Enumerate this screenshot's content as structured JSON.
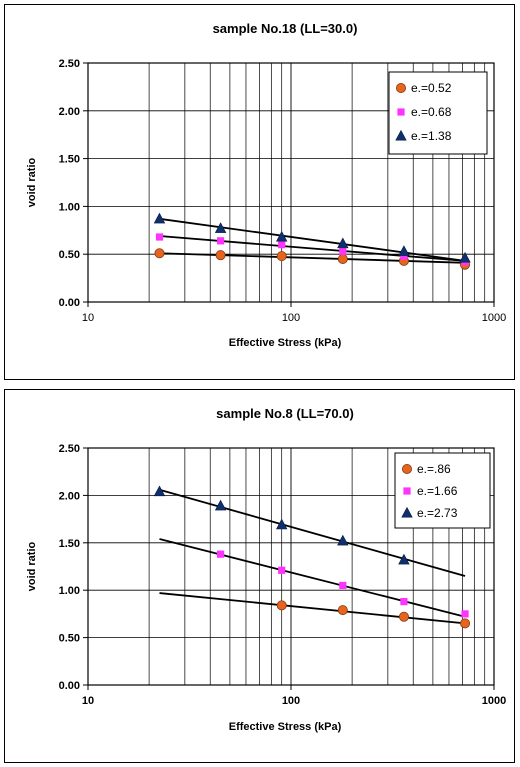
{
  "chart_data": [
    {
      "type": "scatter",
      "title": "sample No.18 (LL=30.0)",
      "xlabel": "Effective Stress (kPa)",
      "ylabel": "void ratio",
      "xscale": "log",
      "xlim": [
        10,
        1000
      ],
      "ylim": [
        0,
        2.5
      ],
      "x_ticks": [
        "10",
        "100",
        "1000"
      ],
      "y_ticks": [
        "0.00",
        "0.50",
        "1.00",
        "1.50",
        "2.00",
        "2.50"
      ],
      "grid": true,
      "legend_position": "top-right",
      "series": [
        {
          "name": "e.=0.52",
          "marker": "circle",
          "color": "#e8641e",
          "x": [
            22.5,
            45,
            90,
            180,
            360,
            720
          ],
          "y": [
            0.51,
            0.49,
            0.48,
            0.45,
            0.43,
            0.39
          ],
          "trend": [
            0.51,
            0.41
          ]
        },
        {
          "name": "e.=0.68",
          "marker": "square",
          "color": "#ff33ff",
          "x": [
            22.5,
            45,
            90,
            180,
            360,
            720
          ],
          "y": [
            0.68,
            0.64,
            0.6,
            0.53,
            0.48,
            0.42
          ],
          "trend": [
            0.69,
            0.43
          ]
        },
        {
          "name": "e.=1.38",
          "marker": "triangle",
          "color": "#0f2f6e",
          "x": [
            22.5,
            45,
            90,
            180,
            360,
            720
          ],
          "y": [
            0.87,
            0.77,
            0.68,
            0.61,
            0.53,
            0.46
          ],
          "trend": [
            0.87,
            0.43
          ]
        }
      ]
    },
    {
      "type": "scatter",
      "title": "sample No.8 (LL=70.0)",
      "xlabel": "Effective Stress (kPa)",
      "ylabel": "void ratio",
      "xscale": "log",
      "xlim": [
        10,
        1000
      ],
      "ylim": [
        0,
        2.5
      ],
      "x_ticks": [
        "10",
        "100",
        "1000"
      ],
      "y_ticks": [
        "0.00",
        "0.50",
        "1.00",
        "1.50",
        "2.00",
        "2.50"
      ],
      "grid": true,
      "legend_position": "top-right",
      "series": [
        {
          "name": "e.=.86",
          "marker": "circle",
          "color": "#e8641e",
          "x": [
            90,
            180,
            360,
            720
          ],
          "y": [
            0.84,
            0.79,
            0.72,
            0.65
          ],
          "trend": [
            0.97,
            0.65
          ]
        },
        {
          "name": "e.=1.66",
          "marker": "square",
          "color": "#ff33ff",
          "x": [
            45,
            90,
            180,
            360,
            720
          ],
          "y": [
            1.38,
            1.21,
            1.05,
            0.88,
            0.75
          ],
          "trend": [
            1.54,
            0.72
          ]
        },
        {
          "name": "e.=2.73",
          "marker": "triangle",
          "color": "#0f2f6e",
          "x": [
            22.5,
            45,
            90,
            180,
            360
          ],
          "y": [
            2.04,
            1.89,
            1.69,
            1.52,
            1.32
          ],
          "trend": [
            2.06,
            1.15
          ]
        }
      ]
    }
  ]
}
